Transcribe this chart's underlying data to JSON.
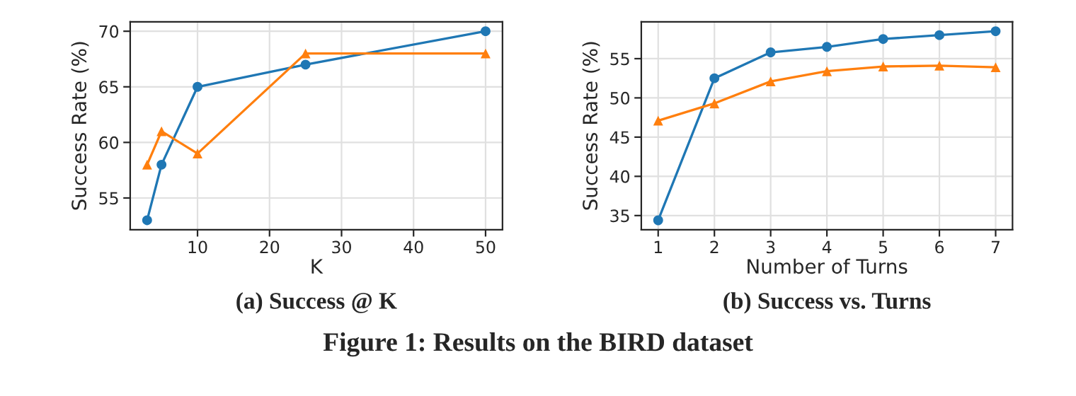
{
  "chart_data": [
    {
      "type": "line",
      "title": "(a) Success @ K",
      "xlabel": "K",
      "ylabel": "Success Rate (%)",
      "x": [
        3,
        5,
        10,
        25,
        50
      ],
      "series": [
        {
          "color": "#1f77b4",
          "marker": "circle",
          "values": [
            53,
            58,
            65,
            67,
            70
          ]
        },
        {
          "color": "#ff7f0e",
          "marker": "triangle",
          "values": [
            58,
            61,
            59,
            68,
            68
          ]
        }
      ],
      "xlim": [
        0.65,
        52.35
      ],
      "xticks": [
        10,
        20,
        30,
        40,
        50
      ],
      "ylim": [
        52.15,
        70.85
      ],
      "yticks": [
        55,
        60,
        65,
        70
      ],
      "grid": true,
      "annotations": [
        "Figure 1: Results on the BIRD dataset"
      ]
    },
    {
      "type": "line",
      "title": "(b) Success vs. Turns",
      "xlabel": "Number of Turns",
      "ylabel": "Success Rate (%)",
      "x": [
        1,
        2,
        3,
        4,
        5,
        6,
        7
      ],
      "series": [
        {
          "color": "#1f77b4",
          "marker": "circle",
          "values": [
            34.4,
            52.5,
            55.8,
            56.5,
            57.5,
            58,
            58.5
          ]
        },
        {
          "color": "#ff7f0e",
          "marker": "triangle",
          "values": [
            47.1,
            49.3,
            52.1,
            53.4,
            54,
            54.1,
            53.9
          ]
        }
      ],
      "xlim": [
        0.7,
        7.3
      ],
      "xticks": [
        1,
        2,
        3,
        4,
        5,
        6,
        7
      ],
      "ylim": [
        33.2,
        59.7
      ],
      "yticks": [
        35,
        40,
        45,
        50,
        55
      ],
      "grid": true
    }
  ]
}
